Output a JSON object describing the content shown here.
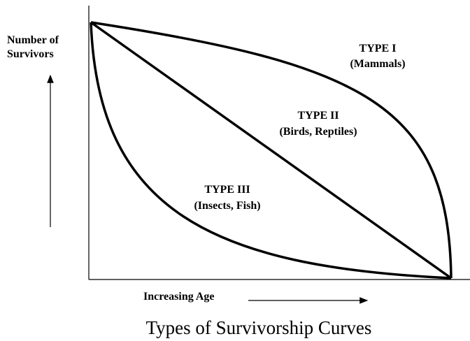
{
  "y_axis_label": [
    "Number of",
    "Survivors"
  ],
  "x_axis_label": "Increasing Age",
  "title": "Types of Survivorship Curves",
  "curves": [
    {
      "label": "TYPE I",
      "sublabel": "(Mammals)"
    },
    {
      "label": "TYPE II",
      "sublabel": "(Birds, Reptiles)"
    },
    {
      "label": "TYPE III",
      "sublabel": "(Insects, Fish)"
    }
  ]
}
